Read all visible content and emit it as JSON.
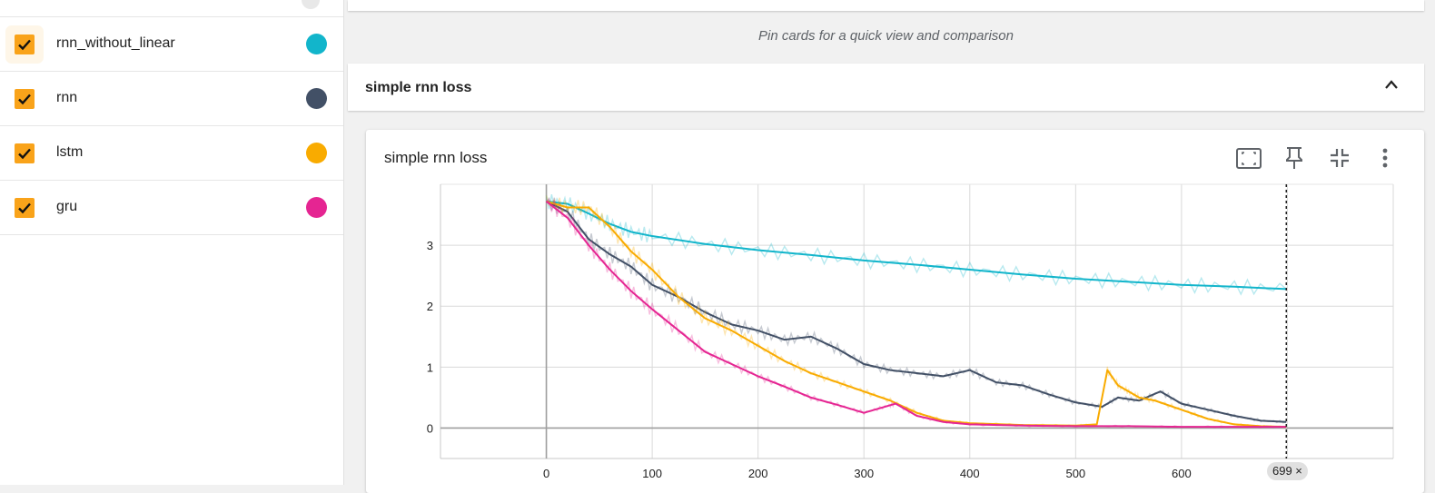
{
  "sidebar": {
    "runs": [
      {
        "name": "rnn_without_linear",
        "color": "#12b5cb",
        "checked": true
      },
      {
        "name": "rnn",
        "color": "#425066",
        "checked": true
      },
      {
        "name": "lstm",
        "color": "#f9ab00",
        "checked": true
      },
      {
        "name": "gru",
        "color": "#e52592",
        "checked": true
      }
    ]
  },
  "main": {
    "pin_hint": "Pin cards for a quick view and comparison",
    "group_title": "simple rnn loss",
    "card": {
      "title": "simple rnn loss",
      "step_badge": "699 ×",
      "tools": [
        "fit-domain-icon",
        "pin-icon",
        "collapse-icon",
        "more-vert-icon"
      ]
    }
  },
  "chart_data": {
    "type": "line",
    "title": "simple rnn loss",
    "xlabel": "",
    "ylabel": "",
    "xlim": [
      -100,
      800
    ],
    "ylim": [
      -0.5,
      4
    ],
    "x_ticks": [
      0,
      100,
      200,
      300,
      400,
      500,
      600
    ],
    "y_ticks": [
      0,
      1,
      2,
      3
    ],
    "grid": true,
    "cursor_step": 699,
    "series": [
      {
        "name": "rnn_without_linear",
        "color": "#12b5cb",
        "x": [
          0,
          20,
          40,
          60,
          80,
          100,
          150,
          200,
          250,
          300,
          350,
          400,
          450,
          500,
          550,
          600,
          650,
          699
        ],
        "y": [
          3.72,
          3.68,
          3.52,
          3.35,
          3.22,
          3.15,
          3.02,
          2.92,
          2.84,
          2.75,
          2.68,
          2.6,
          2.52,
          2.45,
          2.4,
          2.35,
          2.32,
          2.28
        ]
      },
      {
        "name": "rnn",
        "color": "#425066",
        "x": [
          0,
          20,
          40,
          60,
          80,
          100,
          125,
          150,
          175,
          200,
          225,
          250,
          275,
          300,
          325,
          350,
          375,
          400,
          425,
          450,
          475,
          500,
          525,
          540,
          560,
          580,
          600,
          625,
          650,
          675,
          699
        ],
        "y": [
          3.72,
          3.55,
          3.1,
          2.85,
          2.65,
          2.35,
          2.15,
          1.9,
          1.7,
          1.6,
          1.45,
          1.5,
          1.3,
          1.05,
          0.95,
          0.9,
          0.85,
          0.95,
          0.75,
          0.7,
          0.55,
          0.42,
          0.35,
          0.5,
          0.45,
          0.6,
          0.4,
          0.3,
          0.2,
          0.12,
          0.1
        ]
      },
      {
        "name": "lstm",
        "color": "#f9ab00",
        "x": [
          0,
          20,
          40,
          60,
          80,
          100,
          125,
          150,
          175,
          200,
          225,
          250,
          275,
          300,
          325,
          350,
          375,
          400,
          450,
          500,
          520,
          530,
          540,
          550,
          560,
          575,
          600,
          625,
          650,
          675,
          699
        ],
        "y": [
          3.72,
          3.62,
          3.62,
          3.3,
          2.9,
          2.6,
          2.15,
          1.8,
          1.6,
          1.35,
          1.1,
          0.9,
          0.75,
          0.6,
          0.45,
          0.25,
          0.12,
          0.08,
          0.05,
          0.04,
          0.06,
          0.95,
          0.7,
          0.6,
          0.5,
          0.45,
          0.3,
          0.15,
          0.06,
          0.03,
          0.02
        ]
      },
      {
        "name": "gru",
        "color": "#e52592",
        "x": [
          0,
          20,
          40,
          60,
          80,
          100,
          125,
          150,
          175,
          200,
          225,
          250,
          275,
          300,
          320,
          330,
          350,
          375,
          400,
          450,
          500,
          550,
          600,
          650,
          699
        ],
        "y": [
          3.72,
          3.45,
          3.0,
          2.6,
          2.25,
          1.95,
          1.6,
          1.25,
          1.05,
          0.85,
          0.68,
          0.5,
          0.38,
          0.25,
          0.35,
          0.4,
          0.2,
          0.1,
          0.06,
          0.04,
          0.03,
          0.03,
          0.02,
          0.02,
          0.02
        ]
      }
    ]
  }
}
